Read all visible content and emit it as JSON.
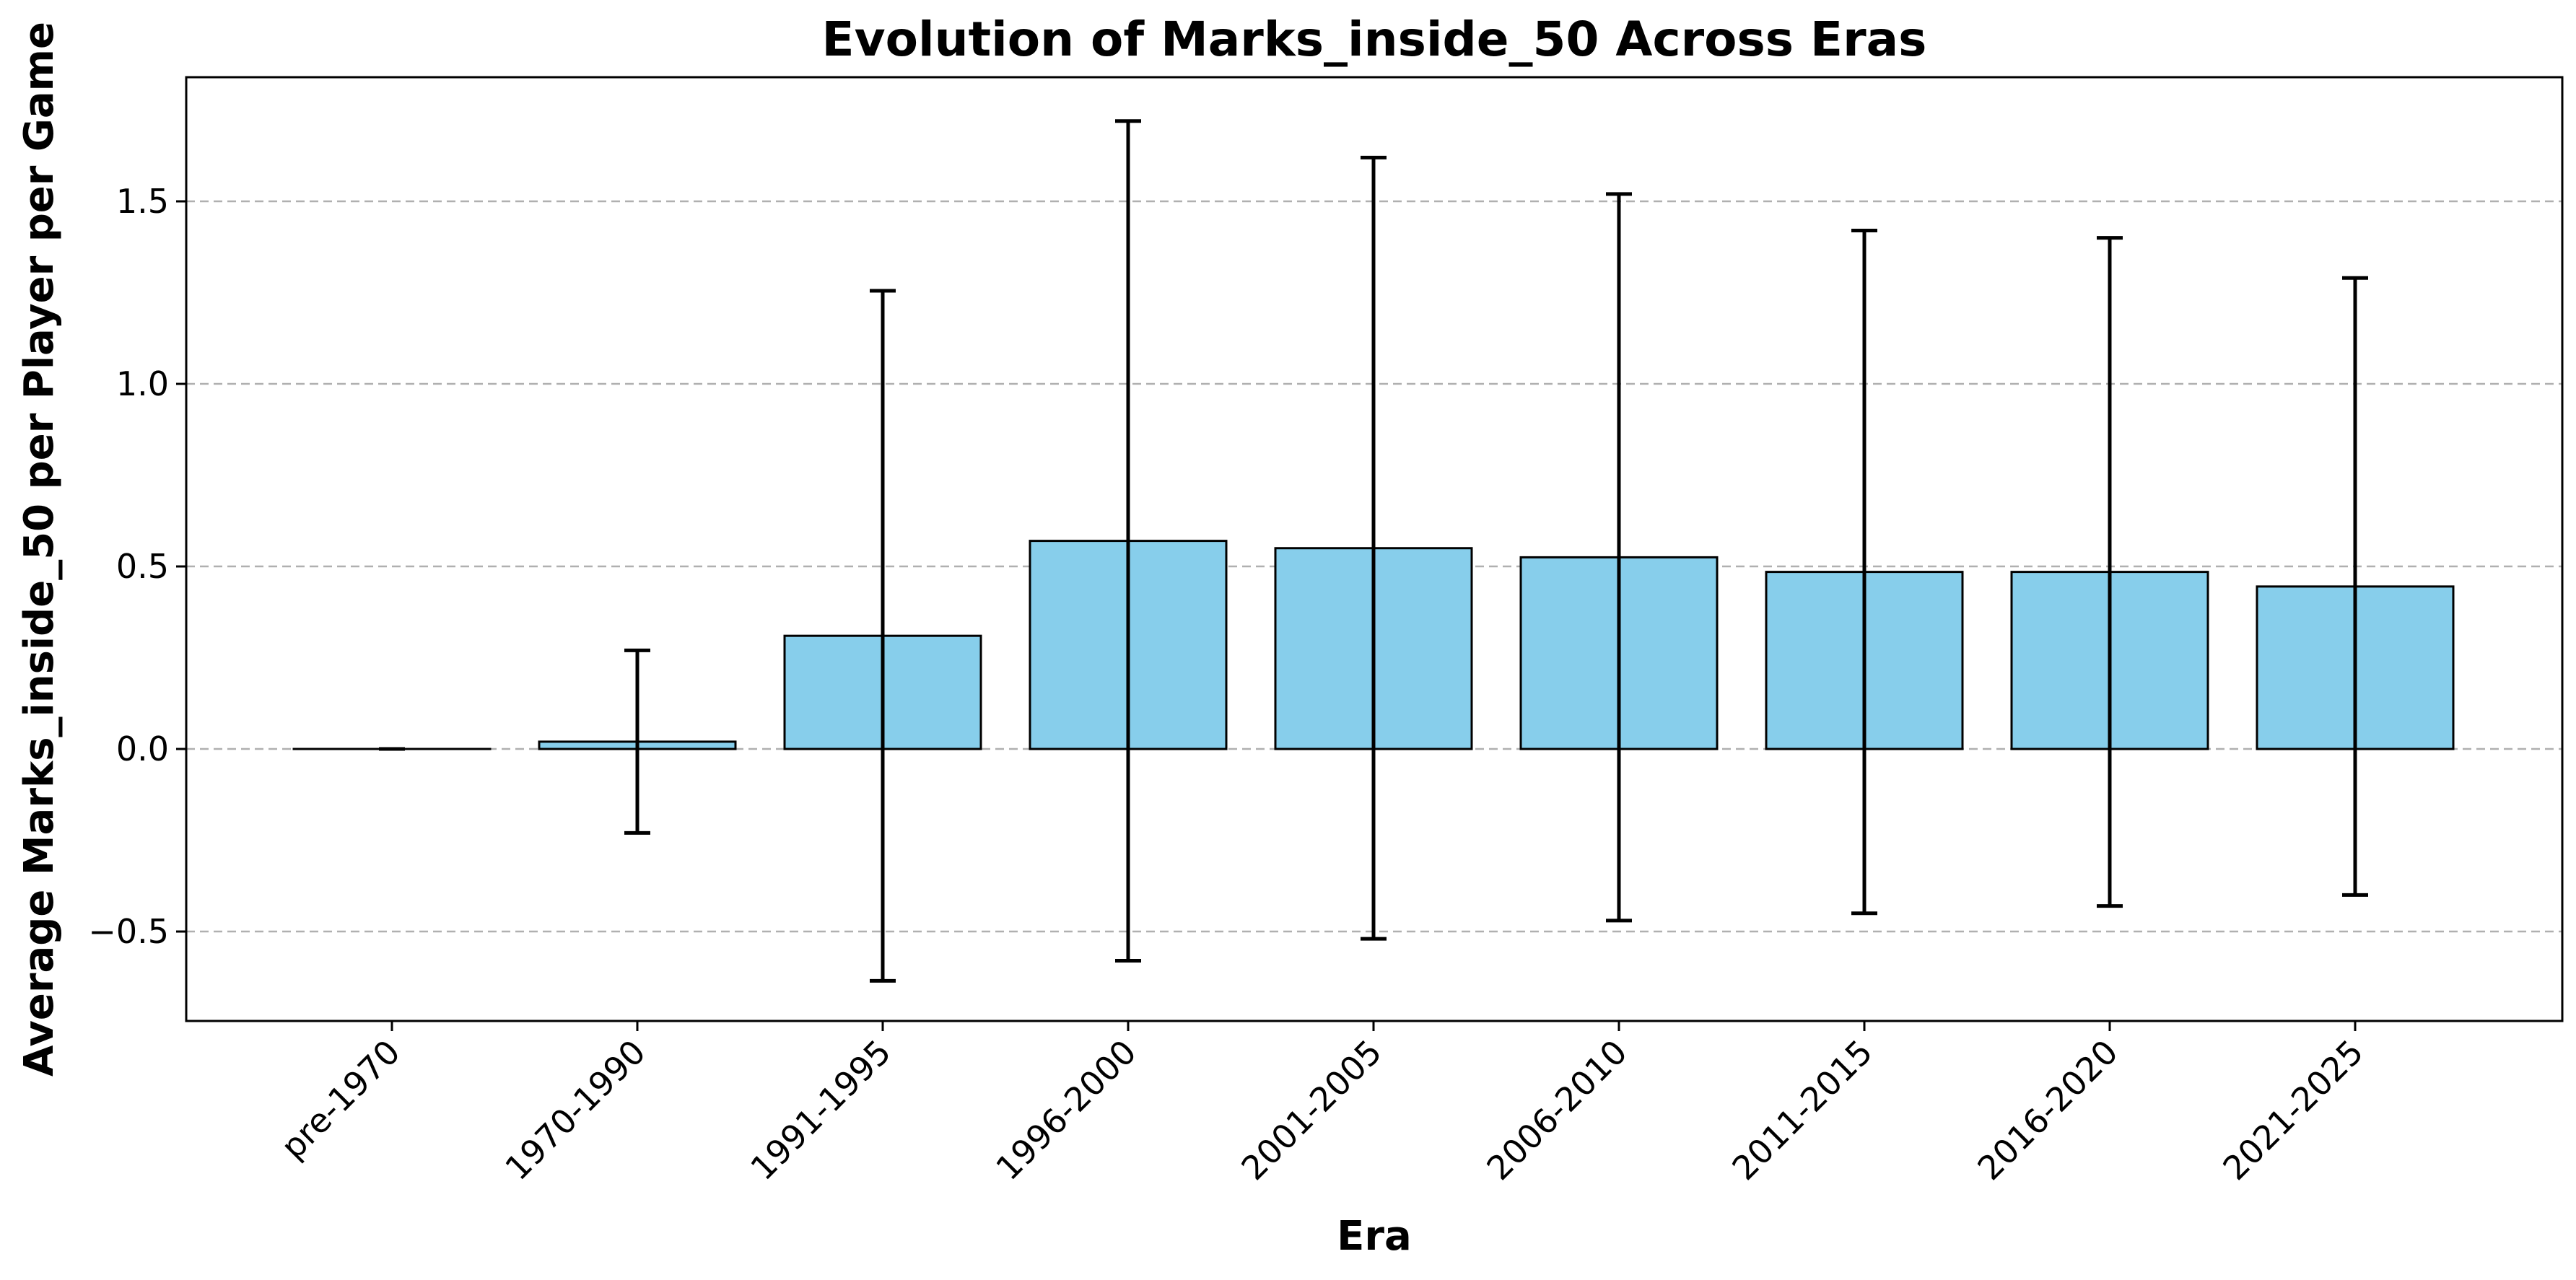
{
  "chart_data": {
    "type": "bar",
    "title": "Evolution of Marks_inside_50 Across Eras",
    "xlabel": "Era",
    "ylabel": "Average Marks_inside_50 per Player per Game",
    "categories": [
      "pre-1970",
      "1970-1990",
      "1991-1995",
      "1996-2000",
      "2001-2005",
      "2006-2010",
      "2011-2015",
      "2016-2020",
      "2021-2025"
    ],
    "values": [
      0.0,
      0.02,
      0.31,
      0.57,
      0.55,
      0.525,
      0.485,
      0.485,
      0.445
    ],
    "error": [
      0.0,
      0.25,
      0.945,
      1.15,
      1.07,
      0.995,
      0.935,
      0.915,
      0.845
    ],
    "ylim": [
      -0.745,
      1.84
    ],
    "yticks": [
      -0.5,
      0.0,
      0.5,
      1.0,
      1.5
    ],
    "ytick_labels": [
      "−0.5",
      "0.0",
      "0.5",
      "1.0",
      "1.5"
    ],
    "grid": true,
    "grid_axis": "y",
    "colors": {
      "bar_fill": "#87CEEB",
      "bar_edge": "#000000",
      "error_bar": "#000000",
      "grid": "#b0b0b0"
    }
  }
}
